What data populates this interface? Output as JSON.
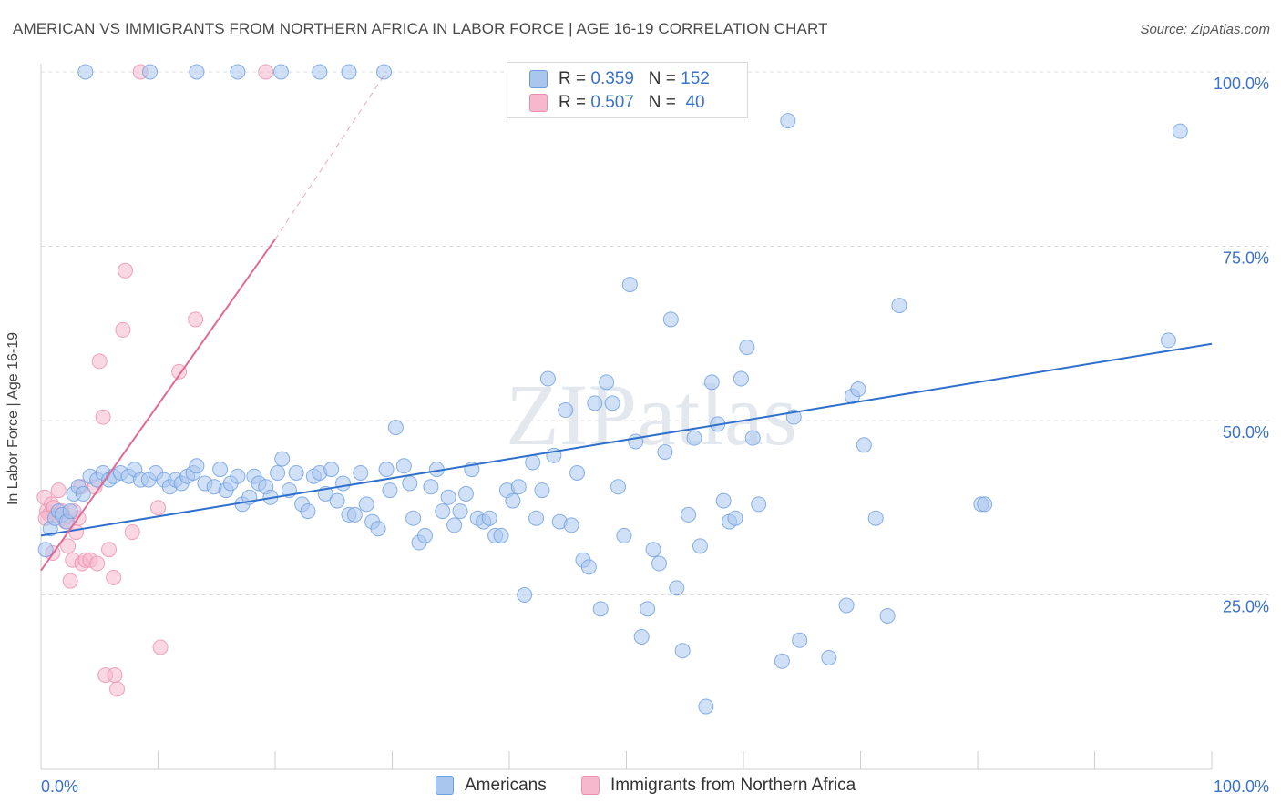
{
  "header": {
    "title": "AMERICAN VS IMMIGRANTS FROM NORTHERN AFRICA IN LABOR FORCE | AGE 16-19 CORRELATION CHART",
    "source": "Source: ZipAtlas.com"
  },
  "watermark": "ZIPatlas",
  "stats": {
    "americans": {
      "r_label": "R =",
      "r": "0.359",
      "n_label": "N =",
      "n": "152"
    },
    "immigrants": {
      "r_label": "R =",
      "r": "0.507",
      "n_label": "N =",
      "n": "40"
    }
  },
  "legend": {
    "americans": "Americans",
    "immigrants": "Immigrants from Northern Africa"
  },
  "colors": {
    "americans_fill": "#a9c6ee",
    "americans_stroke": "#6d9ee0",
    "americans_line": "#2f6fcc",
    "immigrants_fill": "#f5b8cc",
    "immigrants_stroke": "#ec8fae",
    "immigrants_line": "#e06a95",
    "axis_label": "#3b72c9",
    "grid": "#dcdcdc"
  },
  "chart_data": {
    "type": "scatter",
    "ylabel": "In Labor Force | Age 16-19",
    "xlabel": "",
    "xlim": [
      0,
      100
    ],
    "ylim": [
      0,
      103
    ],
    "x_tick_labels": [
      "0.0%",
      "100.0%"
    ],
    "y_ticks": [
      25,
      50,
      75,
      100
    ],
    "y_tick_labels": [
      "25.0%",
      "50.0%",
      "75.0%",
      "100.0%"
    ],
    "grid": "horizontal dashed",
    "series": [
      {
        "name": "Americans",
        "trend": {
          "x": [
            0,
            100
          ],
          "y": [
            33.5,
            61
          ]
        },
        "points": [
          [
            0.4,
            31.5
          ],
          [
            0.8,
            34.5
          ],
          [
            1.2,
            36
          ],
          [
            1.5,
            37
          ],
          [
            1.8,
            36.5
          ],
          [
            2.2,
            35.5
          ],
          [
            2.5,
            37
          ],
          [
            2.8,
            39.5
          ],
          [
            3.2,
            40.5
          ],
          [
            3.6,
            39.5
          ],
          [
            4.2,
            42
          ],
          [
            4.8,
            41.5
          ],
          [
            5.3,
            42.5
          ],
          [
            5.8,
            41.5
          ],
          [
            6.2,
            42
          ],
          [
            6.8,
            42.5
          ],
          [
            7.5,
            42
          ],
          [
            8.0,
            43
          ],
          [
            8.5,
            41.5
          ],
          [
            9.2,
            41.5
          ],
          [
            9.8,
            42.5
          ],
          [
            10.5,
            41.5
          ],
          [
            11.0,
            40.5
          ],
          [
            11.5,
            41.5
          ],
          [
            12.0,
            41
          ],
          [
            12.5,
            42
          ],
          [
            13.0,
            42.5
          ],
          [
            13.3,
            43.5
          ],
          [
            14.0,
            41
          ],
          [
            14.8,
            40.5
          ],
          [
            15.3,
            43
          ],
          [
            15.8,
            40
          ],
          [
            16.2,
            41
          ],
          [
            16.8,
            42
          ],
          [
            17.2,
            38
          ],
          [
            17.8,
            39
          ],
          [
            18.2,
            42
          ],
          [
            18.6,
            41
          ],
          [
            19.2,
            40.5
          ],
          [
            19.6,
            39
          ],
          [
            20.2,
            42.5
          ],
          [
            20.6,
            44.5
          ],
          [
            21.2,
            40
          ],
          [
            21.8,
            42.5
          ],
          [
            22.3,
            38
          ],
          [
            22.8,
            37
          ],
          [
            23.3,
            42
          ],
          [
            23.8,
            42.5
          ],
          [
            24.3,
            39.5
          ],
          [
            24.8,
            43
          ],
          [
            25.3,
            38.5
          ],
          [
            25.8,
            41
          ],
          [
            26.3,
            36.5
          ],
          [
            26.8,
            36.5
          ],
          [
            27.3,
            42.5
          ],
          [
            27.8,
            38
          ],
          [
            28.3,
            35.5
          ],
          [
            28.8,
            34.5
          ],
          [
            29.5,
            43
          ],
          [
            29.8,
            40
          ],
          [
            30.3,
            49
          ],
          [
            31.0,
            43.5
          ],
          [
            31.5,
            41
          ],
          [
            31.8,
            36
          ],
          [
            32.3,
            32.5
          ],
          [
            32.8,
            33.5
          ],
          [
            33.3,
            40.5
          ],
          [
            33.8,
            43
          ],
          [
            34.3,
            37
          ],
          [
            34.8,
            39
          ],
          [
            35.3,
            35
          ],
          [
            35.8,
            37
          ],
          [
            36.3,
            39.5
          ],
          [
            36.8,
            43
          ],
          [
            37.3,
            36
          ],
          [
            37.8,
            35.5
          ],
          [
            38.3,
            36
          ],
          [
            38.8,
            33.5
          ],
          [
            39.3,
            33.5
          ],
          [
            39.8,
            40
          ],
          [
            40.3,
            38.5
          ],
          [
            40.8,
            40.5
          ],
          [
            41.3,
            25
          ],
          [
            42.0,
            44
          ],
          [
            42.3,
            36
          ],
          [
            42.8,
            40
          ],
          [
            43.3,
            56
          ],
          [
            43.8,
            45
          ],
          [
            44.3,
            35.5
          ],
          [
            44.8,
            51.5
          ],
          [
            45.3,
            35
          ],
          [
            45.8,
            42.5
          ],
          [
            46.3,
            30
          ],
          [
            46.8,
            29
          ],
          [
            47.3,
            52.5
          ],
          [
            47.8,
            23
          ],
          [
            48.3,
            55.5
          ],
          [
            48.8,
            52.5
          ],
          [
            49.3,
            40.5
          ],
          [
            49.8,
            33.5
          ],
          [
            50.3,
            69.5
          ],
          [
            50.8,
            47
          ],
          [
            51.3,
            19
          ],
          [
            51.8,
            23
          ],
          [
            52.3,
            31.5
          ],
          [
            52.8,
            29.5
          ],
          [
            53.3,
            45.5
          ],
          [
            53.8,
            64.5
          ],
          [
            54.3,
            26
          ],
          [
            54.8,
            17
          ],
          [
            55.3,
            36.5
          ],
          [
            55.8,
            47.5
          ],
          [
            56.3,
            32
          ],
          [
            56.8,
            9
          ],
          [
            57.3,
            55.5
          ],
          [
            57.8,
            49.5
          ],
          [
            58.3,
            38.5
          ],
          [
            58.8,
            35.5
          ],
          [
            59.3,
            36
          ],
          [
            59.8,
            56
          ],
          [
            60.3,
            60.5
          ],
          [
            60.8,
            47.5
          ],
          [
            61.3,
            38
          ],
          [
            63.3,
            15.5
          ],
          [
            64.3,
            50.5
          ],
          [
            64.8,
            18.5
          ],
          [
            67.3,
            16
          ],
          [
            68.8,
            23.5
          ],
          [
            69.3,
            53.5
          ],
          [
            69.8,
            54.5
          ],
          [
            70.3,
            46.5
          ],
          [
            71.3,
            36
          ],
          [
            72.3,
            22
          ],
          [
            73.3,
            66.5
          ],
          [
            80.3,
            38
          ],
          [
            80.6,
            38
          ],
          [
            96.3,
            61.5
          ],
          [
            97.3,
            91.5
          ],
          [
            63.8,
            93
          ],
          [
            3.8,
            100
          ],
          [
            9.3,
            100
          ],
          [
            13.3,
            100
          ],
          [
            16.8,
            100
          ],
          [
            20.5,
            100
          ],
          [
            23.8,
            100
          ],
          [
            26.3,
            100
          ],
          [
            29.3,
            100
          ]
        ]
      },
      {
        "name": "Immigrants from Northern Africa",
        "trend": {
          "x": [
            0,
            20
          ],
          "y": [
            28.5,
            76
          ]
        },
        "trend_extension": {
          "x": [
            20,
            29.5
          ],
          "y": [
            76,
            100
          ]
        },
        "points": [
          [
            0.3,
            39
          ],
          [
            0.5,
            37
          ],
          [
            0.7,
            36.5
          ],
          [
            0.9,
            38
          ],
          [
            1.1,
            37.5
          ],
          [
            1.3,
            36.5
          ],
          [
            1.5,
            40
          ],
          [
            1.8,
            37
          ],
          [
            2.0,
            36
          ],
          [
            2.3,
            32
          ],
          [
            2.5,
            27
          ],
          [
            2.7,
            30
          ],
          [
            3.0,
            34
          ],
          [
            3.2,
            36
          ],
          [
            3.5,
            29.5
          ],
          [
            3.8,
            30
          ],
          [
            4.2,
            30
          ],
          [
            4.8,
            29.5
          ],
          [
            5.0,
            58.5
          ],
          [
            5.3,
            50.5
          ],
          [
            5.8,
            31.5
          ],
          [
            6.2,
            27.5
          ],
          [
            7.0,
            63
          ],
          [
            7.2,
            71.5
          ],
          [
            7.8,
            34
          ],
          [
            10.0,
            37.5
          ],
          [
            10.2,
            17.5
          ],
          [
            11.8,
            57
          ],
          [
            13.2,
            64.5
          ],
          [
            5.5,
            13.5
          ],
          [
            6.3,
            13.5
          ],
          [
            6.5,
            11.5
          ],
          [
            8.5,
            100
          ],
          [
            19.2,
            100
          ],
          [
            3.4,
            40.5
          ],
          [
            2.1,
            35.5
          ],
          [
            4.6,
            40.5
          ],
          [
            1.0,
            31
          ],
          [
            0.4,
            36
          ],
          [
            2.8,
            37
          ]
        ]
      }
    ]
  }
}
